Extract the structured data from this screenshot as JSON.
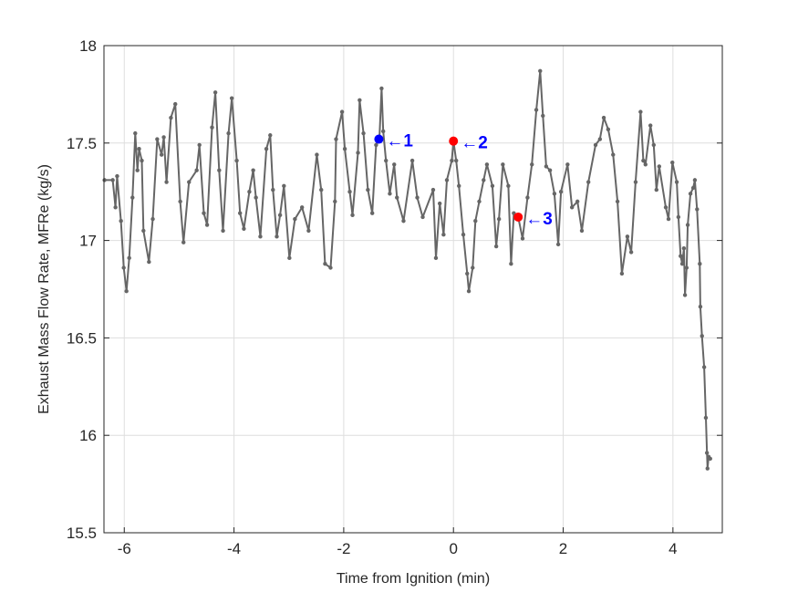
{
  "chart_data": {
    "type": "line",
    "title": "",
    "xlabel": "Time from Ignition (min)",
    "ylabel": "Exhaust Mass Flow Rate, MFRe (kg/s)",
    "xlim": [
      -6.37,
      4.9
    ],
    "ylim": [
      15.5,
      18
    ],
    "xticks": [
      -6,
      -4,
      -2,
      0,
      2,
      4
    ],
    "xtick_labels": [
      "-6",
      "-4",
      "-2",
      "0",
      "2",
      "4"
    ],
    "yticks": [
      15.5,
      16,
      16.5,
      17,
      17.5,
      18
    ],
    "ytick_labels": [
      "15.5",
      "16",
      "16.5",
      "17",
      "17.5",
      "18"
    ],
    "grid": true,
    "line_color": "#666666",
    "series": [
      {
        "name": "MFRe",
        "x": [
          -6.36,
          -6.21,
          -6.16,
          -6.13,
          -6.06,
          -6.01,
          -5.96,
          -5.91,
          -5.85,
          -5.8,
          -5.76,
          -5.73,
          -5.68,
          -5.65,
          -5.55,
          -5.48,
          -5.4,
          -5.32,
          -5.28,
          -5.23,
          -5.15,
          -5.07,
          -4.98,
          -4.92,
          -4.82,
          -4.68,
          -4.63,
          -4.55,
          -4.49,
          -4.4,
          -4.34,
          -4.27,
          -4.2,
          -4.1,
          -4.04,
          -3.95,
          -3.89,
          -3.82,
          -3.72,
          -3.65,
          -3.6,
          -3.52,
          -3.41,
          -3.34,
          -3.29,
          -3.22,
          -3.16,
          -3.09,
          -2.99,
          -2.89,
          -2.76,
          -2.64,
          -2.49,
          -2.41,
          -2.34,
          -2.24,
          -2.16,
          -2.14,
          -2.03,
          -1.98,
          -1.89,
          -1.84,
          -1.74,
          -1.71,
          -1.64,
          -1.56,
          -1.48,
          -1.41,
          -1.35,
          -1.31,
          -1.28,
          -1.23,
          -1.16,
          -1.08,
          -1.03,
          -0.91,
          -0.75,
          -0.66,
          -0.56,
          -0.37,
          -0.32,
          -0.25,
          -0.18,
          -0.12,
          -0.03,
          0.0,
          0.05,
          0.1,
          0.18,
          0.25,
          0.28,
          0.35,
          0.4,
          0.47,
          0.55,
          0.61,
          0.71,
          0.78,
          0.83,
          0.9,
          1.0,
          1.05,
          1.1,
          1.18,
          1.26,
          1.35,
          1.43,
          1.51,
          1.58,
          1.63,
          1.69,
          1.76,
          1.84,
          1.91,
          1.96,
          2.08,
          2.16,
          2.26,
          2.34,
          2.46,
          2.59,
          2.67,
          2.74,
          2.82,
          2.91,
          2.99,
          3.07,
          3.17,
          3.24,
          3.32,
          3.41,
          3.46,
          3.5,
          3.59,
          3.65,
          3.7,
          3.75,
          3.87,
          3.92,
          3.99,
          4.07,
          4.1,
          4.14,
          4.17,
          4.2,
          4.22,
          4.25,
          4.27,
          4.32,
          4.37,
          4.4,
          4.44,
          4.49,
          4.5,
          4.53,
          4.57,
          4.6,
          4.62,
          4.63,
          4.65,
          4.68
        ],
        "y": [
          17.31,
          17.31,
          17.17,
          17.33,
          17.1,
          16.86,
          16.74,
          16.91,
          17.22,
          17.55,
          17.36,
          17.47,
          17.41,
          17.05,
          16.89,
          17.11,
          17.52,
          17.44,
          17.53,
          17.3,
          17.63,
          17.7,
          17.2,
          16.99,
          17.3,
          17.36,
          17.49,
          17.14,
          17.08,
          17.58,
          17.76,
          17.36,
          17.05,
          17.55,
          17.73,
          17.41,
          17.14,
          17.06,
          17.25,
          17.36,
          17.22,
          17.02,
          17.47,
          17.54,
          17.26,
          17.02,
          17.13,
          17.28,
          16.91,
          17.11,
          17.17,
          17.05,
          17.44,
          17.26,
          16.88,
          16.86,
          17.2,
          17.52,
          17.66,
          17.47,
          17.25,
          17.13,
          17.45,
          17.72,
          17.55,
          17.26,
          17.14,
          17.49,
          17.52,
          17.78,
          17.56,
          17.41,
          17.24,
          17.39,
          17.22,
          17.1,
          17.41,
          17.22,
          17.12,
          17.26,
          16.91,
          17.19,
          17.03,
          17.31,
          17.41,
          17.51,
          17.41,
          17.28,
          17.03,
          16.83,
          16.74,
          16.86,
          17.1,
          17.2,
          17.31,
          17.39,
          17.28,
          16.97,
          17.11,
          17.39,
          17.28,
          16.88,
          17.14,
          17.12,
          17.01,
          17.22,
          17.39,
          17.67,
          17.87,
          17.64,
          17.38,
          17.36,
          17.24,
          16.98,
          17.25,
          17.39,
          17.17,
          17.2,
          17.05,
          17.3,
          17.49,
          17.52,
          17.63,
          17.57,
          17.44,
          17.2,
          16.83,
          17.02,
          16.94,
          17.3,
          17.66,
          17.41,
          17.39,
          17.59,
          17.49,
          17.26,
          17.38,
          17.17,
          17.11,
          17.4,
          17.3,
          17.12,
          16.92,
          16.88,
          16.96,
          16.72,
          16.86,
          17.08,
          17.24,
          17.27,
          17.31,
          17.16,
          16.88,
          16.66,
          16.51,
          16.35,
          16.09,
          15.91,
          15.83,
          15.89,
          15.88
        ]
      }
    ],
    "markers": [
      {
        "x": -1.36,
        "y": 17.52,
        "color": "#0000ff",
        "label": "←1"
      },
      {
        "x": 0.0,
        "y": 17.51,
        "color": "#ff0000",
        "label": "←2"
      },
      {
        "x": 1.18,
        "y": 17.12,
        "color": "#ff0000",
        "label": "←3"
      }
    ],
    "annotation_color": "#0000ff"
  }
}
